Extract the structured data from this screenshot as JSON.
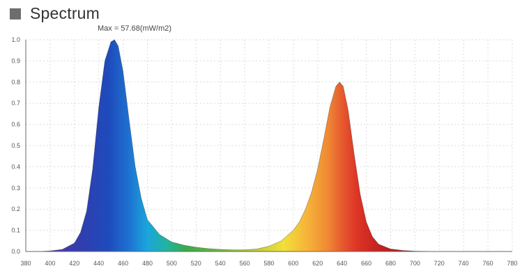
{
  "header": {
    "title": "Spectrum",
    "annotation": "Max = 57.68(mW/m2)"
  },
  "chart_data": {
    "type": "area",
    "title": "Spectrum",
    "annotation": "Max = 57.68(mW/m2)",
    "xlabel": "",
    "ylabel": "",
    "xlim": [
      380,
      780
    ],
    "ylim": [
      0,
      1.0
    ],
    "xticks": [
      380,
      400,
      420,
      440,
      460,
      480,
      500,
      520,
      540,
      560,
      580,
      600,
      620,
      640,
      660,
      680,
      700,
      720,
      740,
      760,
      780
    ],
    "yticks": [
      0.0,
      0.1,
      0.2,
      0.3,
      0.4,
      0.5,
      0.6,
      0.7,
      0.8,
      0.9,
      1.0
    ],
    "grid": true,
    "fill": "wavelength-color",
    "x": [
      380,
      390,
      400,
      410,
      420,
      425,
      430,
      435,
      440,
      445,
      450,
      453,
      456,
      460,
      465,
      470,
      475,
      480,
      490,
      500,
      510,
      520,
      530,
      540,
      550,
      560,
      570,
      580,
      590,
      600,
      605,
      610,
      615,
      620,
      625,
      630,
      635,
      638,
      641,
      645,
      650,
      655,
      660,
      665,
      670,
      680,
      690,
      700,
      720,
      740,
      760,
      780
    ],
    "y": [
      0.0,
      0.0,
      0.003,
      0.01,
      0.04,
      0.09,
      0.19,
      0.39,
      0.68,
      0.9,
      0.99,
      1.0,
      0.97,
      0.85,
      0.62,
      0.4,
      0.25,
      0.15,
      0.08,
      0.045,
      0.03,
      0.02,
      0.014,
      0.01,
      0.008,
      0.008,
      0.012,
      0.025,
      0.05,
      0.1,
      0.14,
      0.2,
      0.28,
      0.39,
      0.53,
      0.68,
      0.78,
      0.8,
      0.78,
      0.67,
      0.46,
      0.27,
      0.14,
      0.07,
      0.035,
      0.012,
      0.005,
      0.002,
      0.0,
      0.0,
      0.0,
      0.0
    ]
  }
}
